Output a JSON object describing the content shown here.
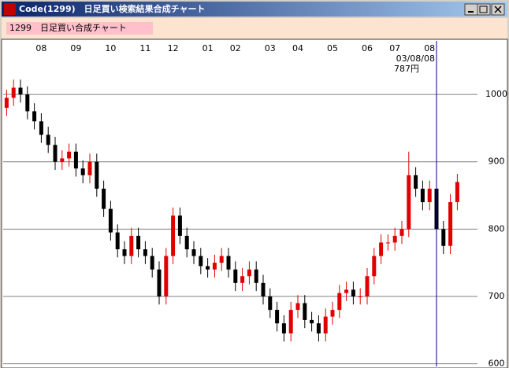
{
  "window": {
    "title": "Code(1299)　日足買い検索結果合成チャート"
  },
  "label": "1299　日足買い合成チャート",
  "chart_data": {
    "type": "candlestick",
    "categories": [
      null,
      null,
      null,
      null,
      null,
      "08",
      null,
      null,
      null,
      null,
      "09",
      null,
      null,
      null,
      null,
      "10",
      null,
      null,
      null,
      null,
      "11",
      null,
      null,
      null,
      "12",
      null,
      null,
      null,
      null,
      "01",
      null,
      null,
      null,
      "02",
      null,
      null,
      null,
      null,
      "03",
      null,
      null,
      null,
      "04",
      null,
      null,
      null,
      null,
      "05",
      null,
      null,
      null,
      null,
      "06",
      null,
      null,
      null,
      "07",
      null,
      null,
      null,
      null,
      "08",
      null,
      null,
      null,
      null
    ],
    "open": [
      980,
      995,
      1010,
      1000,
      975,
      960,
      940,
      925,
      900,
      905,
      915,
      890,
      880,
      900,
      860,
      830,
      795,
      770,
      760,
      790,
      770,
      760,
      740,
      700,
      760,
      820,
      790,
      770,
      760,
      745,
      740,
      750,
      760,
      740,
      720,
      730,
      740,
      720,
      700,
      680,
      660,
      645,
      680,
      690,
      665,
      660,
      645,
      670,
      680,
      705,
      710,
      700,
      700,
      730,
      760,
      780,
      780,
      790,
      800,
      880,
      860,
      840,
      860,
      800,
      775,
      840
    ],
    "high": [
      1007,
      1022,
      1022,
      1012,
      987,
      972,
      952,
      937,
      917,
      927,
      927,
      902,
      912,
      912,
      872,
      842,
      807,
      782,
      802,
      802,
      782,
      772,
      752,
      772,
      832,
      832,
      802,
      782,
      772,
      757,
      762,
      772,
      772,
      752,
      742,
      752,
      752,
      732,
      712,
      692,
      672,
      692,
      702,
      702,
      677,
      672,
      682,
      692,
      717,
      722,
      722,
      712,
      742,
      772,
      792,
      792,
      802,
      812,
      915,
      892,
      872,
      872,
      872,
      812,
      852,
      882
    ],
    "low": [
      968,
      983,
      988,
      963,
      948,
      928,
      913,
      888,
      888,
      893,
      878,
      868,
      868,
      848,
      818,
      783,
      758,
      748,
      748,
      758,
      748,
      728,
      688,
      688,
      748,
      778,
      758,
      748,
      733,
      728,
      728,
      738,
      728,
      708,
      708,
      718,
      708,
      688,
      668,
      648,
      633,
      633,
      668,
      653,
      648,
      633,
      633,
      658,
      668,
      693,
      688,
      688,
      688,
      718,
      748,
      768,
      768,
      778,
      788,
      848,
      828,
      828,
      788,
      763,
      763,
      828
    ],
    "close": [
      995,
      1010,
      1000,
      975,
      960,
      940,
      925,
      900,
      905,
      915,
      890,
      880,
      900,
      860,
      830,
      795,
      770,
      760,
      790,
      770,
      760,
      740,
      700,
      760,
      820,
      790,
      770,
      760,
      745,
      740,
      750,
      760,
      740,
      720,
      730,
      740,
      720,
      700,
      680,
      660,
      645,
      680,
      690,
      665,
      660,
      645,
      670,
      680,
      705,
      710,
      700,
      700,
      730,
      760,
      780,
      780,
      790,
      800,
      880,
      860,
      840,
      860,
      800,
      775,
      840,
      870
    ],
    "up_color": "#e00000",
    "down_color": "#000000",
    "ylim": [
      596,
      1076
    ],
    "yticks": [
      600,
      700,
      800,
      900,
      1000
    ],
    "grid": true,
    "cursor": {
      "index": 62,
      "date": "03/08/08",
      "price": "787円"
    }
  }
}
